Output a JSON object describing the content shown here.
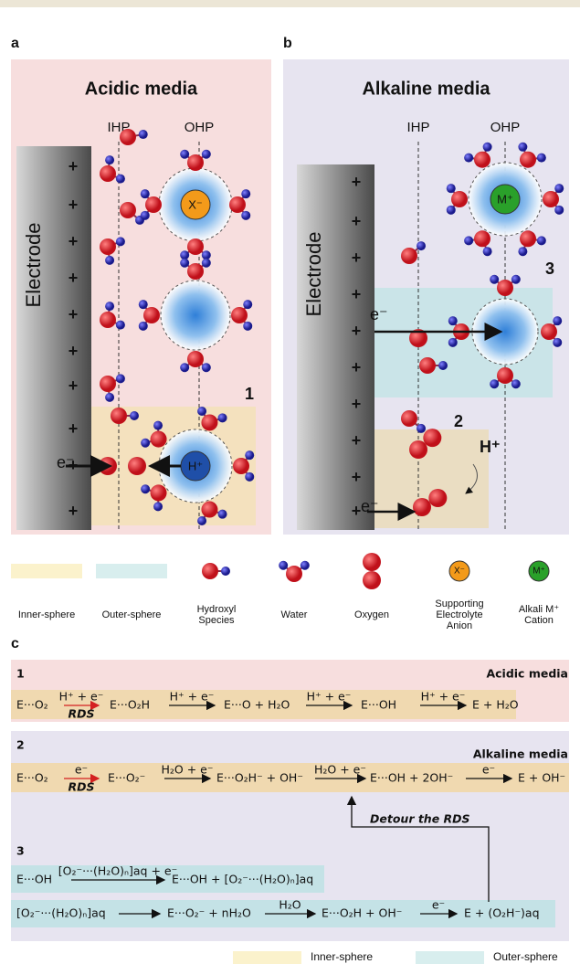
{
  "panels": [
    {
      "label": "a",
      "title": "Acidic media",
      "ihp": "IHP",
      "ohp": "OHP",
      "electrode": "Electrode",
      "plus": "+",
      "ion": "X⁻",
      "center_ion": "H⁺",
      "electron": "e⁻",
      "site": "1"
    },
    {
      "label": "b",
      "title": "Alkaline media",
      "ihp": "IHP",
      "ohp": "OHP",
      "electrode": "Electrode",
      "plus": "+",
      "ion": "M⁺",
      "proton": "H⁺",
      "electron": "e⁻",
      "sites": [
        "3",
        "2"
      ]
    }
  ],
  "legend": [
    {
      "label": [
        "Inner-sphere"
      ]
    },
    {
      "label": [
        "Outer-sphere"
      ]
    },
    {
      "label": [
        "Hydroxyl",
        "Species"
      ]
    },
    {
      "label": [
        "Water"
      ]
    },
    {
      "label": [
        "Oxygen"
      ]
    },
    {
      "label": [
        "Supporting",
        "Electrolyte",
        "Anion"
      ],
      "icon": "X⁻"
    },
    {
      "label": [
        "Alkali M⁺",
        "Cation"
      ],
      "icon": "M⁺"
    }
  ],
  "reactions": {
    "label": "c",
    "rows": [
      {
        "number": "1",
        "media": "Acidic media",
        "rds": "RDS",
        "terms": [
          "E···O₂",
          "E···O₂H",
          "E···O + H₂O",
          "E···OH",
          "E + H₂O"
        ],
        "arrows": [
          "H⁺ + e⁻",
          "H⁺ + e⁻",
          "H⁺ + e⁻",
          "H⁺ + e⁻"
        ]
      },
      {
        "number": "2",
        "media": "Alkaline media",
        "rds": "RDS",
        "terms": [
          "E···O₂",
          "E···O₂⁻",
          "E···O₂H⁻ + OH⁻",
          "E···OH + 2OH⁻",
          "E + OH⁻"
        ],
        "arrows": [
          "e⁻",
          "H₂O + e⁻",
          "H₂O + e⁻",
          "e⁻"
        ]
      },
      {
        "number": "3",
        "lines": [
          {
            "terms": [
              "E···OH",
              "E···OH + [O₂⁻···(H₂O)ₙ]aq"
            ],
            "arrows": [
              "[O₂⁻···(H₂O)ₙ]aq + e⁻"
            ]
          },
          {
            "terms": [
              "[O₂⁻···(H₂O)ₙ]aq",
              "E···O₂⁻ + nH₂O",
              "E···O₂H + OH⁻",
              "E + (O₂H⁻)aq"
            ],
            "arrows": [
              "",
              "H₂O",
              "e⁻"
            ]
          }
        ]
      }
    ],
    "detour": "Detour the RDS",
    "legend": [
      "Inner-sphere",
      "Outer-sphere"
    ]
  }
}
